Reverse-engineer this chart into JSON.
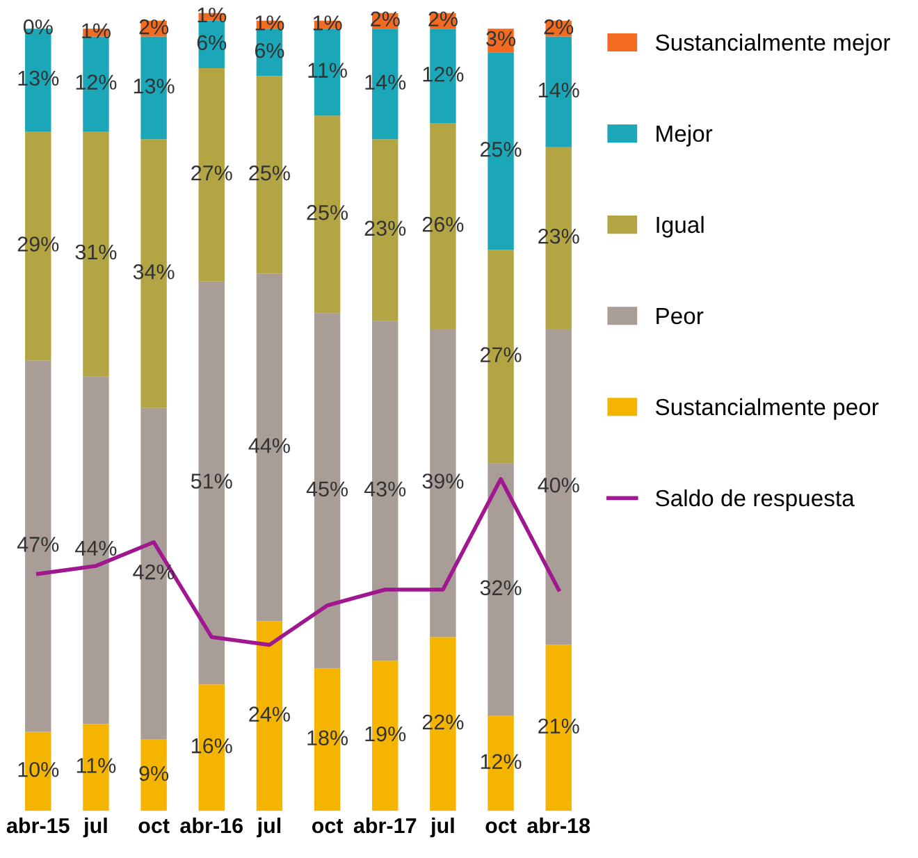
{
  "chart_data": {
    "type": "bar",
    "stacked": true,
    "categories": [
      "abr-15",
      "jul",
      "oct",
      "abr-16",
      "jul",
      "oct",
      "abr-17",
      "jul",
      "oct",
      "abr-18"
    ],
    "ylim": [
      0,
      101
    ],
    "tick_labels": "x",
    "grid": false,
    "legend": "right",
    "series": [
      {
        "name": "Sustancialmente peor",
        "color": "#f5b400",
        "values": [
          10,
          11,
          9,
          16,
          24,
          18,
          19,
          22,
          12,
          21
        ],
        "value_labels": [
          "10%",
          "11%",
          "9%",
          "16%",
          "24%",
          "18%",
          "19%",
          "22%",
          "12%",
          "21%"
        ]
      },
      {
        "name": "Peor",
        "color": "#a89e97",
        "values": [
          47,
          44,
          42,
          51,
          44,
          45,
          43,
          39,
          32,
          40
        ],
        "value_labels": [
          "47%",
          "44%",
          "42%",
          "51%",
          "44%",
          "45%",
          "43%",
          "39%",
          "32%",
          "40%"
        ]
      },
      {
        "name": "Igual",
        "color": "#b3a444",
        "values": [
          29,
          31,
          34,
          27,
          25,
          25,
          23,
          26,
          27,
          23
        ],
        "value_labels": [
          "29%",
          "31%",
          "34%",
          "27%",
          "25%",
          "25%",
          "23%",
          "26%",
          "27%",
          "23%"
        ]
      },
      {
        "name": "Mejor",
        "color": "#1ba7b8",
        "values": [
          13,
          12,
          13,
          6,
          6,
          11,
          14,
          12,
          25,
          14
        ],
        "value_labels": [
          "13%",
          "12%",
          "13%",
          "6%",
          "6%",
          "11%",
          "14%",
          "12%",
          "25%",
          "14%"
        ]
      },
      {
        "name": "Sustancialmente mejor",
        "color": "#f26b21",
        "values": [
          0,
          1,
          2,
          1,
          1,
          1,
          2,
          2,
          3,
          2
        ],
        "value_labels": [
          "0%",
          "1%",
          "2%",
          "1%",
          "1%",
          "1%",
          "2%",
          "2%",
          "3%",
          "2%"
        ]
      },
      {
        "name": "Saldo de respuesta",
        "type": "line",
        "color": "#a0178f",
        "values": [
          30,
          31,
          34,
          22,
          21,
          26,
          28,
          28,
          42,
          28
        ]
      }
    ]
  }
}
